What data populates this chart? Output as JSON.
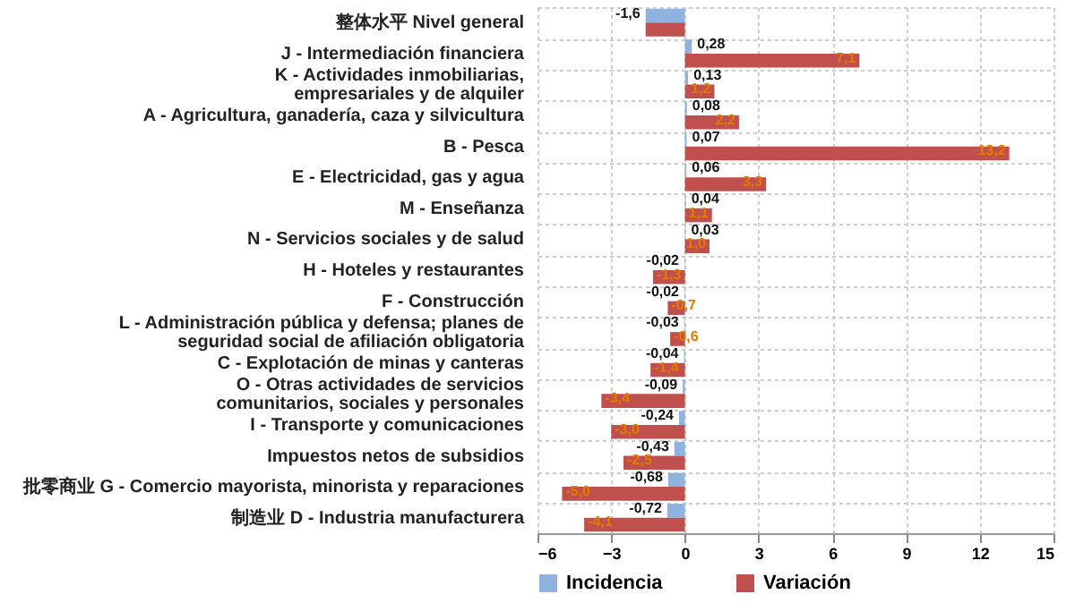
{
  "chart_data": {
    "type": "bar",
    "orientation": "horizontal",
    "categories": [
      "整体水平    Nivel general",
      "J - Intermediación financiera",
      "K - Actividades inmobiliarias,\nempresariales y de alquiler",
      "A -  Agricultura, ganadería, caza y silvicultura",
      "B - Pesca",
      "E - Electricidad, gas y agua",
      "M - Enseñanza",
      "N - Servicios sociales y de salud",
      "H - Hoteles y restaurantes",
      "F - Construcción",
      "L - Administración pública y defensa; planes de\nseguridad social de afiliación obligatoria",
      "C - Explotación de minas y canteras",
      "O - Otras actividades de servicios\ncomunitarios, sociales y personales",
      "I - Transporte y comunicaciones",
      "Impuestos netos de subsidios",
      "批零商业    G - Comercio mayorista, minorista y reparaciones",
      "制造业    D - Industria manufacturera"
    ],
    "series": [
      {
        "name": "Incidencia",
        "color": "#8fb3de",
        "values": [
          -1.6,
          0.28,
          0.13,
          0.08,
          0.07,
          0.06,
          0.04,
          0.03,
          -0.02,
          -0.02,
          -0.03,
          -0.04,
          -0.09,
          -0.24,
          -0.43,
          -0.68,
          -0.72
        ],
        "value_labels": [
          "-1,6",
          "0,28",
          "0,13",
          "0,08",
          "0,07",
          "0,06",
          "0,04",
          "0,03",
          "-0,02",
          "-0,02",
          "-0,03",
          "-0,04",
          "-0,09",
          "-0,24",
          "-0,43",
          "-0,68",
          "-0,72"
        ]
      },
      {
        "name": "Variación",
        "color": "#c0504d",
        "values": [
          -1.6,
          7.1,
          1.2,
          2.2,
          13.2,
          3.3,
          1.1,
          1.0,
          -1.3,
          -0.7,
          -0.6,
          -1.4,
          -3.4,
          -3.0,
          -2.5,
          -5.0,
          -4.1
        ],
        "value_labels": [
          null,
          "7,1",
          "1,2",
          "2,2",
          "13,2",
          "3,3",
          "1,1",
          "1,0",
          "-1,3",
          "-0,7",
          "-0,6",
          "-1,4",
          "-3,4",
          "-3,0",
          "-2,5",
          "-5,0",
          "-4,1"
        ]
      }
    ],
    "xlim": [
      -6,
      15
    ],
    "xticks": [
      -6,
      -3,
      0,
      3,
      6,
      9,
      12,
      15
    ],
    "grid": true,
    "legend": "bottom"
  }
}
